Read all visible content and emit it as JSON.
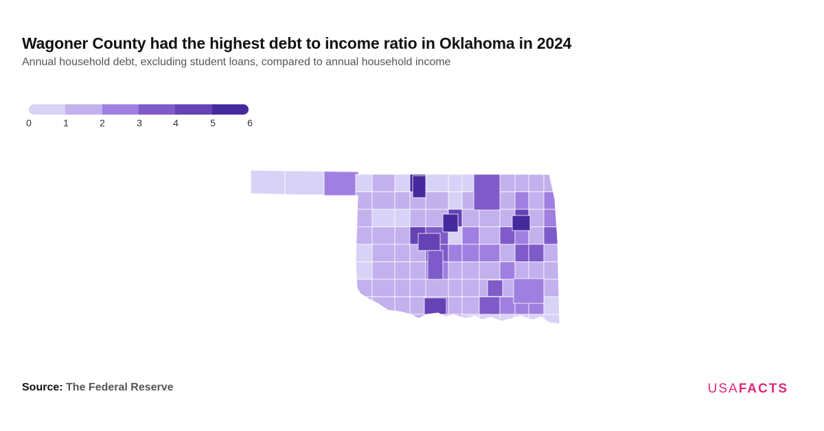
{
  "header": {
    "title": "Wagoner County had the highest debt to income ratio in Oklahoma in 2024",
    "subtitle": "Annual household debt, excluding student loans, compared to annual household income"
  },
  "legend": {
    "ticks": [
      "0",
      "1",
      "2",
      "3",
      "4",
      "5",
      "6"
    ],
    "colors": [
      "#d8d2f7",
      "#c3b1ee",
      "#9f80e0",
      "#7f5bc9",
      "#6543b4",
      "#462a9d"
    ]
  },
  "colors": {
    "border": "#ffffff",
    "logo": "#e0267c"
  },
  "footer": {
    "source_label": "Source:",
    "source_name": "The Federal Reserve",
    "logo_usa": "USA",
    "logo_facts": "FACTS"
  }
}
